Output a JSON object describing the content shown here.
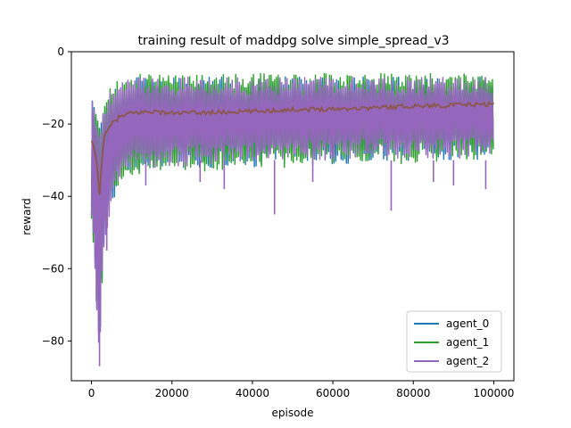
{
  "chart_data": {
    "type": "line",
    "title": "training result of maddpg solve simple_spread_v3",
    "xlabel": "episode",
    "ylabel": "reward",
    "xlim": [
      -5000,
      105000
    ],
    "ylim": [
      -91,
      0
    ],
    "x_ticks": [
      0,
      20000,
      40000,
      60000,
      80000,
      100000
    ],
    "y_ticks": [
      0,
      -20,
      -40,
      -60,
      -80
    ],
    "grid": false,
    "legend_position": "lower-right",
    "series": [
      {
        "name": "agent_0",
        "color": "#1f77b4",
        "style": "noisy-band",
        "x": [
          0,
          1000,
          2000,
          3000,
          5000,
          8000,
          12000,
          20000,
          30000,
          40000,
          50000,
          60000,
          70000,
          80000,
          90000,
          100000
        ],
        "upper": [
          -12,
          -14,
          -20,
          -15,
          -10,
          -8,
          -7,
          -7,
          -7,
          -7,
          -7,
          -7,
          -7,
          -7,
          -7,
          -7
        ],
        "lower": [
          -48,
          -65,
          -85,
          -55,
          -42,
          -35,
          -33,
          -32,
          -32,
          -32,
          -31,
          -31,
          -31,
          -30,
          -30,
          -30
        ]
      },
      {
        "name": "agent_1",
        "color": "#2ca02c",
        "style": "noisy-band",
        "x": [
          0,
          1000,
          2000,
          3000,
          5000,
          8000,
          12000,
          20000,
          30000,
          40000,
          50000,
          60000,
          70000,
          80000,
          90000,
          100000
        ],
        "upper": [
          -11,
          -14,
          -20,
          -14,
          -9,
          -7,
          -6,
          -6,
          -6,
          -6,
          -6,
          -6,
          -6,
          -6,
          -6,
          -6
        ],
        "lower": [
          -47,
          -64,
          -86,
          -54,
          -41,
          -36,
          -34,
          -33,
          -33,
          -32,
          -32,
          -31,
          -31,
          -31,
          -30,
          -30
        ]
      },
      {
        "name": "agent_2",
        "color": "#9467bd",
        "style": "noisy-band",
        "x": [
          0,
          1000,
          2000,
          3000,
          5000,
          8000,
          12000,
          20000,
          30000,
          40000,
          50000,
          60000,
          70000,
          80000,
          90000,
          100000
        ],
        "upper": [
          -12,
          -15,
          -21,
          -15,
          -10,
          -8,
          -7,
          -7,
          -7,
          -7,
          -7,
          -7,
          -7,
          -7,
          -7,
          -7
        ],
        "lower": [
          -48,
          -66,
          -87,
          -55,
          -42,
          -34,
          -32,
          -32,
          -31,
          -31,
          -31,
          -30,
          -30,
          -30,
          -30,
          -29
        ]
      },
      {
        "color": "#8c564b",
        "style": "line",
        "x": [
          0,
          1000,
          2000,
          3000,
          4000,
          5000,
          7000,
          10000,
          15000,
          20000,
          30000,
          40000,
          50000,
          60000,
          70000,
          80000,
          90000,
          100000
        ],
        "y": [
          -25,
          -28,
          -39,
          -24,
          -22,
          -20,
          -18,
          -17,
          -16.5,
          -17,
          -16.8,
          -16.5,
          -16,
          -15.8,
          -15.5,
          -15,
          -14.8,
          -14.5
        ]
      }
    ],
    "spikes": [
      {
        "x": 2000,
        "y": -87
      },
      {
        "x": 1200,
        "y": -69
      },
      {
        "x": 3800,
        "y": -55
      },
      {
        "x": 13500,
        "y": -37
      },
      {
        "x": 27000,
        "y": -36
      },
      {
        "x": 33000,
        "y": -38
      },
      {
        "x": 45500,
        "y": -45
      },
      {
        "x": 55000,
        "y": -36
      },
      {
        "x": 74500,
        "y": -44
      },
      {
        "x": 85000,
        "y": -36
      },
      {
        "x": 90000,
        "y": -37
      },
      {
        "x": 98000,
        "y": -38
      }
    ]
  }
}
